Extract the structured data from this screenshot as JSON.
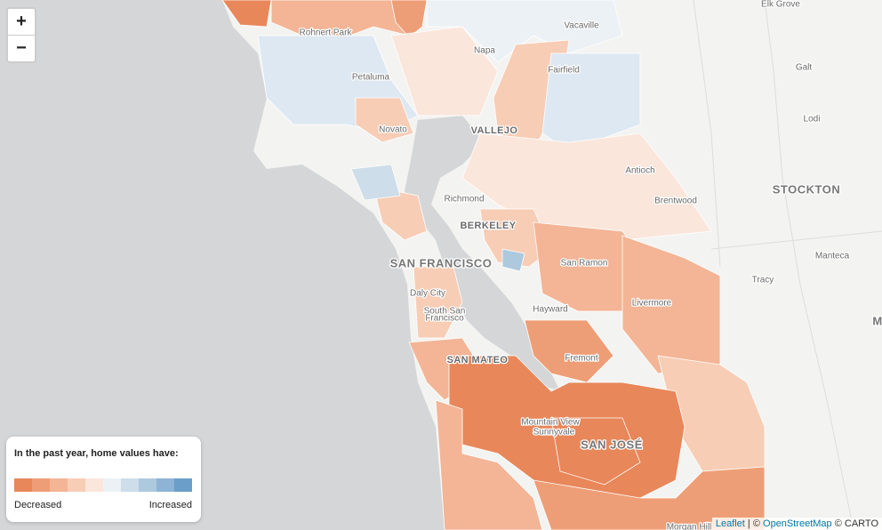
{
  "map": {
    "zoom_in": "+",
    "zoom_out": "−",
    "places": [
      "Elk Grove",
      "Vacaville",
      "Rohnert Park",
      "Napa",
      "Fairfield",
      "Galt",
      "Petaluma",
      "Lodi",
      "Novato",
      "VALLEJO",
      "Antioch",
      "STOCKTON",
      "Richmond",
      "Brentwood",
      "BERKELEY",
      "SAN FRANCISCO",
      "San Ramon",
      "Manteca",
      "Daly City",
      "Tracy",
      "Livermore",
      "South San",
      "Francisco",
      "Hayward",
      "SAN MATEO",
      "Fremont",
      "Mountain View",
      "Sunnyvale",
      "SAN JOSÉ",
      "Morgan Hill",
      "M"
    ],
    "legend": {
      "title": "In the past year, home values have:",
      "low": "Decreased",
      "high": "Increased",
      "colors": [
        "#e8875a",
        "#ee9e76",
        "#f3b596",
        "#f7cdb5",
        "#fbe6dc",
        "#ecf1f6",
        "#cddde9",
        "#adc9de",
        "#8db4d4",
        "#6b9ec8"
      ]
    },
    "attribution": {
      "leaflet": "Leaflet",
      "sep": "| ©",
      "osm": "OpenStreetMap",
      "carto": "© CARTO"
    }
  }
}
